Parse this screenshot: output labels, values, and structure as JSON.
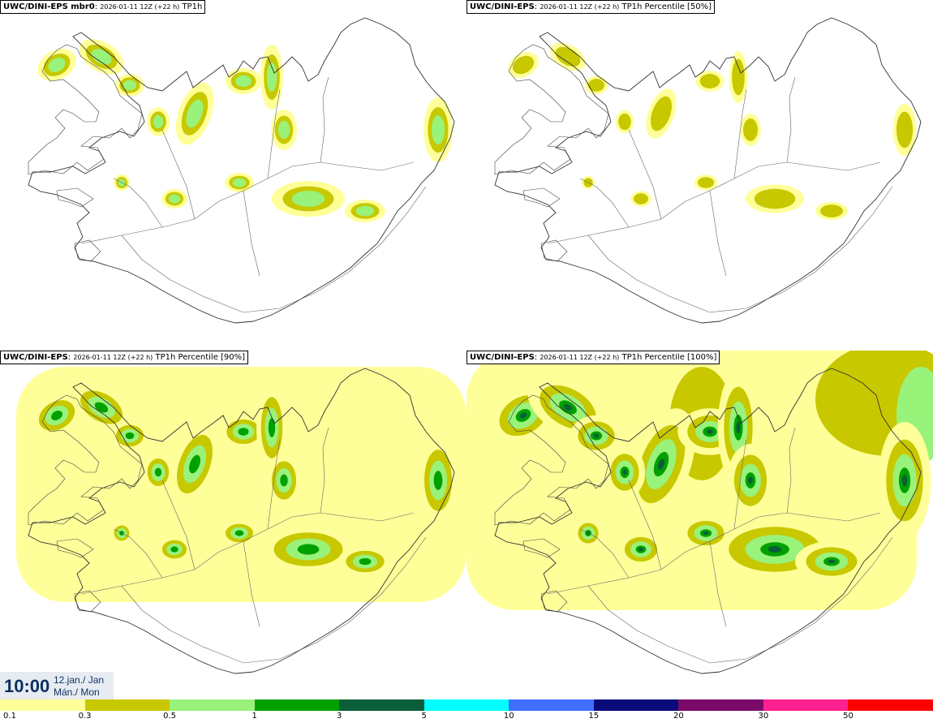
{
  "panels": [
    {
      "model": "UWC/DINI-EPS mbr0",
      "meta": "2026-01-11 12Z (+22 h)",
      "product": "TP1h",
      "intensity": 1
    },
    {
      "model": "UWC/DINI-EPS",
      "meta": "2026-01-11 12Z (+22 h)",
      "product": "TP1h Percentile [50%]",
      "intensity": 0
    },
    {
      "model": "UWC/DINI-EPS",
      "meta": "2026-01-11 12Z (+22 h)",
      "product": "TP1h Percentile [90%]",
      "intensity": 2
    },
    {
      "model": "UWC/DINI-EPS",
      "meta": "2026-01-11 12Z (+22 h)",
      "product": "TP1h Percentile [100%]",
      "intensity": 3
    }
  ],
  "time": {
    "clock": "10:00",
    "date_line": "12.jan./ Jan",
    "day_line": "Mán./ Mon"
  },
  "legend": {
    "labels": [
      "0.1",
      "0.3",
      "0.5",
      "1",
      "3",
      "5",
      "10",
      "15",
      "20",
      "30",
      "50"
    ],
    "colors": [
      "#ffff99",
      "#c8c800",
      "#99f27a",
      "#00a000",
      "#0a5e3a",
      "#00ffff",
      "#3f6fff",
      "#0a0a7a",
      "#7a0a6a",
      "#ff2090",
      "#ff0000"
    ]
  }
}
